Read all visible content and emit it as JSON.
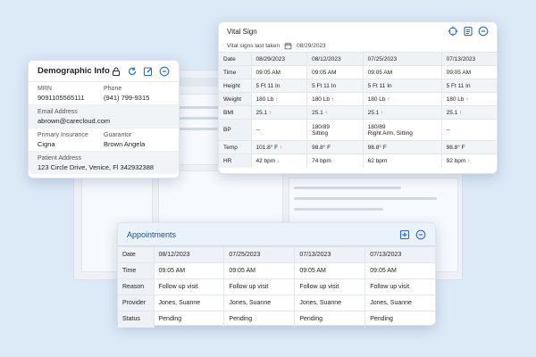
{
  "demographic": {
    "title": "Demographic Info",
    "icons": [
      "lock-icon",
      "refresh-icon",
      "edit-icon",
      "collapse-icon"
    ],
    "mrn_label": "MRN",
    "mrn": "9091105565111",
    "phone_label": "Phone",
    "phone": "(941) 799-9315",
    "email_label": "Email Address",
    "email": "abrown@carecloud.com",
    "insurance_label": "Primary Insurance",
    "insurance": "Cigna",
    "guarantor_label": "Guarantor",
    "guarantor": "Brown Angela",
    "address_label": "Patient Address",
    "address": "123 Circle Drive, Venice, Fl 342932388"
  },
  "vital": {
    "title": "Vital Sign",
    "icons": [
      "target-icon",
      "list-icon",
      "collapse-icon"
    ],
    "last_taken_label": "Vital signs last taken",
    "last_taken_date": "08/29/2023",
    "rows": [
      {
        "label": "Date",
        "cells": [
          "08/29/2023",
          "08/12/2023",
          "07/25/2023",
          "07/13/2023"
        ]
      },
      {
        "label": "Time",
        "cells": [
          "09:05 AM",
          "09:05 AM",
          "09:05 AM",
          "09:05 AM"
        ]
      },
      {
        "label": "Height",
        "cells": [
          "5 Ft 11 In",
          "5 Ft 11 In",
          "5 Ft 11 In",
          "5 Ft 11 In"
        ]
      },
      {
        "label": "Weight",
        "cells": [
          "180 Lb",
          "180 Lb",
          "180 Lb",
          "180 Lb"
        ]
      },
      {
        "label": "BMI",
        "cells": [
          "25.1",
          "25.1",
          "25.1",
          "25.1"
        ]
      },
      {
        "label": "BP",
        "cells": [
          "--",
          "180/89",
          "180/89",
          "--"
        ],
        "sub": [
          "",
          "Sitting",
          "Right Arm, Sitting",
          ""
        ]
      },
      {
        "label": "Temp",
        "cells": [
          "101.8° F",
          "98.8° F",
          "98.8° F",
          "98.8° F"
        ]
      },
      {
        "label": "HR",
        "cells": [
          "42 bpm",
          "74 bpm",
          "62 bpm",
          "92 bpm"
        ]
      }
    ]
  },
  "appointments": {
    "title": "Appointments",
    "icons": [
      "add-icon",
      "collapse-icon"
    ],
    "rows": [
      {
        "label": "Date",
        "cells": [
          "08/12/2023",
          "07/25/2023",
          "07/13/2023",
          "07/13/2023"
        ]
      },
      {
        "label": "Time",
        "cells": [
          "09:05 AM",
          "09:05 AM",
          "09:05 AM",
          "09:05 AM"
        ]
      },
      {
        "label": "Reason",
        "cells": [
          "Follow up visit",
          "Follow up visit",
          "Follow up visit",
          "Follow up visit"
        ]
      },
      {
        "label": "Provider",
        "cells": [
          "Jones, Suanne",
          "Jones, Suanne",
          "Jones, Suanne",
          "Jones, Suanne"
        ]
      },
      {
        "label": "Status",
        "cells": [
          "Pending",
          "Pending",
          "Pending",
          "Pending"
        ]
      }
    ]
  },
  "colors": {
    "accent": "#1f4e8c",
    "alert": "#d9363e",
    "background": "#dce9f7"
  }
}
